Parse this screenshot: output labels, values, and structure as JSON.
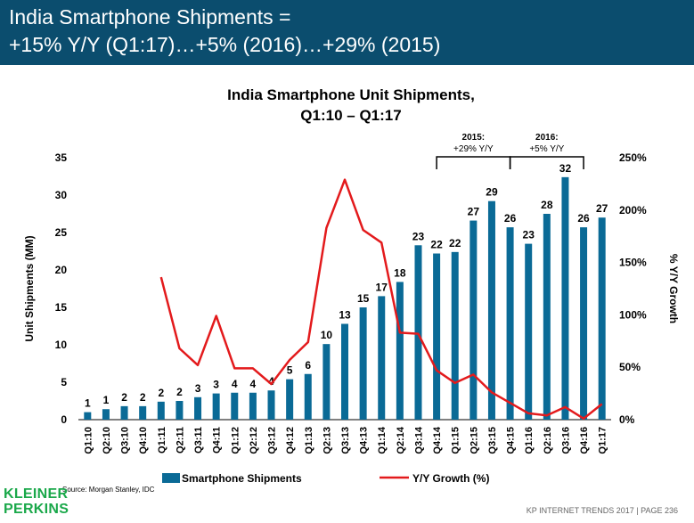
{
  "header": {
    "line1": "India Smartphone Shipments =",
    "line2": "+15% Y/Y (Q1:17)…+5% (2016)…+29% (2015)"
  },
  "chart_data": {
    "type": "bar",
    "title_line1": "India Smartphone Unit Shipments,",
    "title_line2": "Q1:10 – Q1:17",
    "ylabel": "Unit Shipments (MM)",
    "y2label": "% Y/Y Growth",
    "ylim": [
      0,
      35
    ],
    "y_ticks": [
      "0",
      "5",
      "10",
      "15",
      "20",
      "25",
      "30",
      "35"
    ],
    "y2lim": [
      0,
      250
    ],
    "y2_ticks": [
      "0%",
      "50%",
      "100%",
      "150%",
      "200%",
      "250%"
    ],
    "categories": [
      "Q1:10",
      "Q2:10",
      "Q3:10",
      "Q4:10",
      "Q1:11",
      "Q2:11",
      "Q3:11",
      "Q4:11",
      "Q1:12",
      "Q2:12",
      "Q3:12",
      "Q4:12",
      "Q1:13",
      "Q2:13",
      "Q3:13",
      "Q4:13",
      "Q1:14",
      "Q2:14",
      "Q3:14",
      "Q4:14",
      "Q1:15",
      "Q2:15",
      "Q3:15",
      "Q4:15",
      "Q1:16",
      "Q2:16",
      "Q3:16",
      "Q4:16",
      "Q1:17"
    ],
    "series": [
      {
        "name": "Smartphone Shipments",
        "type": "bar",
        "color": "#0a6a96",
        "values": [
          1.0,
          1.4,
          1.8,
          1.8,
          2.4,
          2.5,
          3.0,
          3.5,
          3.6,
          3.6,
          3.9,
          5.4,
          6.1,
          10.1,
          12.8,
          15.0,
          16.5,
          18.4,
          23.3,
          22.2,
          22.4,
          26.6,
          29.2,
          25.7,
          23.5,
          27.5,
          32.4,
          25.7,
          27.0
        ],
        "labels": [
          "1",
          "1",
          "2",
          "2",
          "2",
          "2",
          "3",
          "3",
          "4",
          "4",
          "4",
          "5",
          "6",
          "10",
          "13",
          "15",
          "17",
          "18",
          "23",
          "22",
          "22",
          "27",
          "29",
          "26",
          "23",
          "28",
          "32",
          "26",
          "27"
        ]
      },
      {
        "name": "Y/Y Growth (%)",
        "type": "line",
        "color": "#e31a1c",
        "values": [
          null,
          null,
          null,
          null,
          136,
          68,
          52,
          99,
          49,
          49,
          34,
          57,
          74,
          183,
          229,
          181,
          169,
          83,
          82,
          47,
          35,
          43,
          26,
          16,
          6,
          4,
          12,
          1,
          15
        ]
      }
    ],
    "annotations": [
      {
        "label_line1": "2015:",
        "label_line2": "+29% Y/Y",
        "from": "Q4:14",
        "to": "Q4:15"
      },
      {
        "label_line1": "2016:",
        "label_line2": "+5% Y/Y",
        "from": "Q4:15",
        "to": "Q4:16"
      }
    ],
    "legend": "bottom",
    "grid": false
  },
  "footer": {
    "source": "Source: Morgan Stanley, IDC",
    "logo_line1": "KLEINER",
    "logo_line2": "PERKINS",
    "page": "KP INTERNET TRENDS 2017   |   PAGE 236"
  }
}
